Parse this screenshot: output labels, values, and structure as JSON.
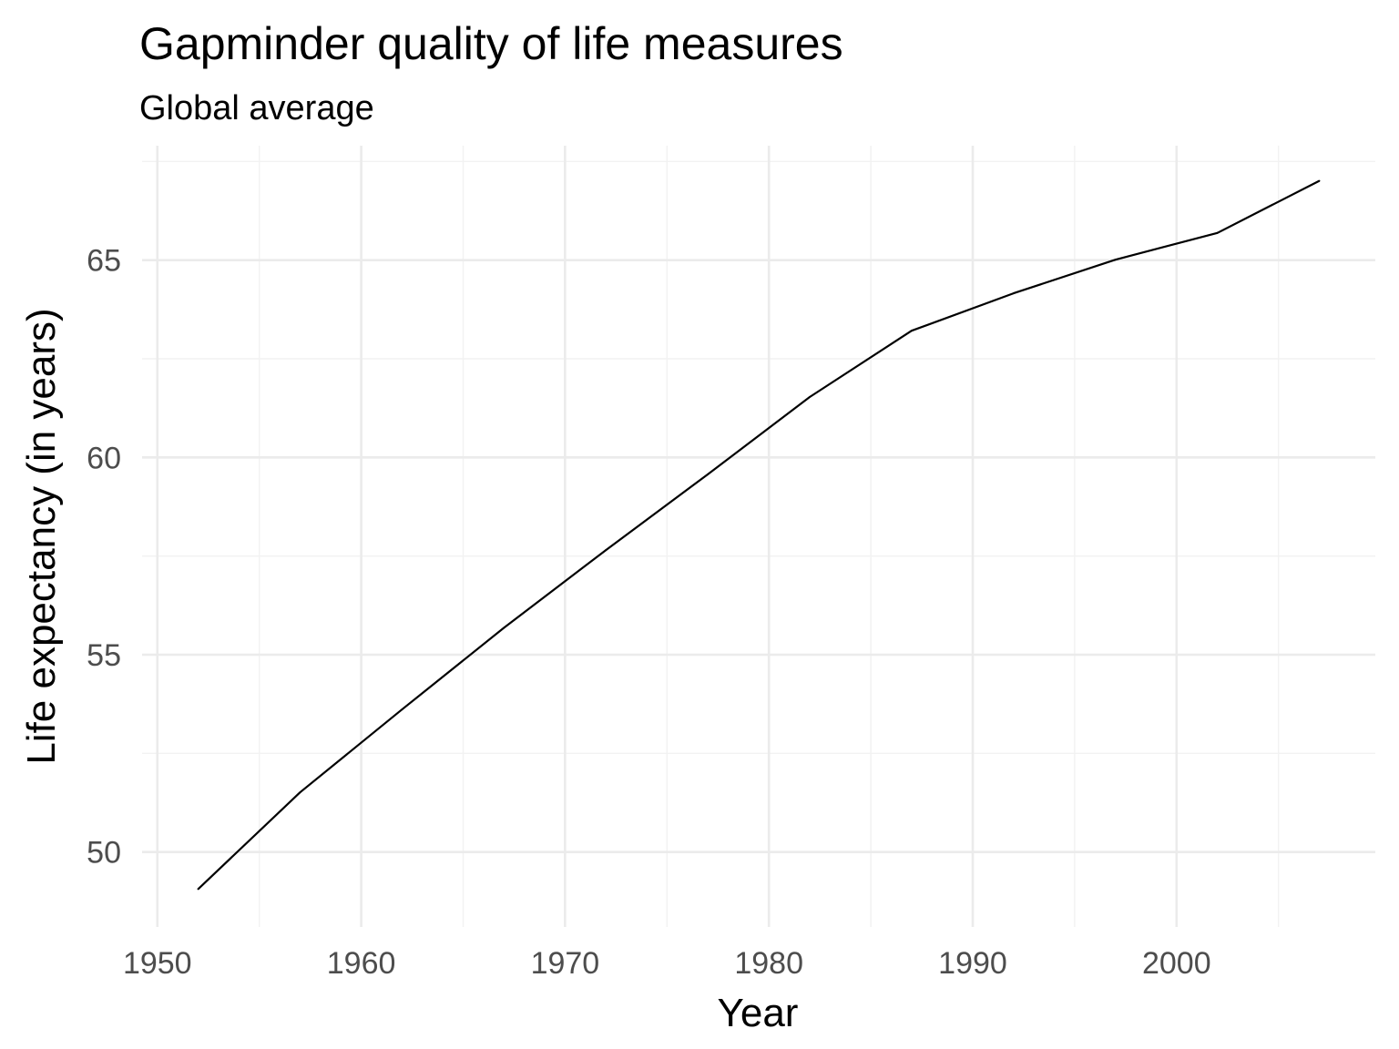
{
  "chart_data": {
    "type": "line",
    "title": "Gapminder quality of life measures",
    "subtitle": "Global average",
    "xlabel": "Year",
    "ylabel": "Life expectancy (in years)",
    "xlim": [
      1949.25,
      2009.75
    ],
    "ylim": [
      48.1,
      67.9
    ],
    "x_ticks": [
      1950,
      1960,
      1970,
      1980,
      1990,
      2000
    ],
    "x_tick_labels": [
      "1950",
      "1960",
      "1970",
      "1980",
      "1990",
      "2000"
    ],
    "x_minor_ticks": [
      1955,
      1965,
      1975,
      1985,
      1995,
      2005
    ],
    "y_ticks": [
      50,
      55,
      60,
      65
    ],
    "y_tick_labels": [
      "50",
      "55",
      "60",
      "65"
    ],
    "y_minor_ticks": [
      52.5,
      57.5,
      62.5,
      67.5
    ],
    "grid": true,
    "legend": "none",
    "colors": {
      "line": "#000000",
      "grid_major": "#ebebeb",
      "grid_minor": "#f2f2f2",
      "tick_text": "#4d4d4d"
    },
    "x": [
      1952,
      1957,
      1962,
      1967,
      1972,
      1977,
      1982,
      1987,
      1992,
      1997,
      2002,
      2007
    ],
    "series": [
      {
        "values": [
          49.06,
          51.51,
          53.61,
          55.68,
          57.65,
          59.57,
          61.53,
          63.21,
          64.16,
          65.01,
          65.69,
          67.01
        ]
      }
    ]
  }
}
